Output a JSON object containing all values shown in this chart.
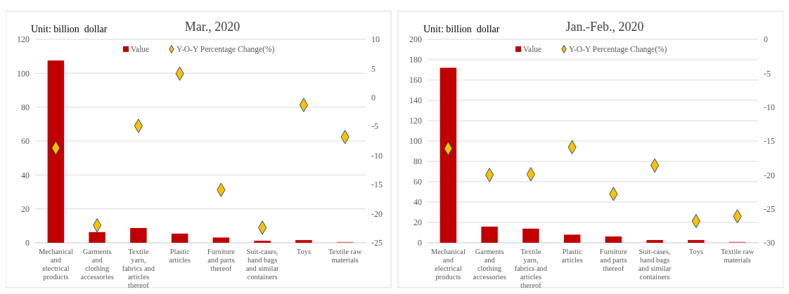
{
  "chart_data": [
    {
      "type": "bar",
      "title": "Mar., 2020",
      "annotations": [
        "Unit: billion  dollar"
      ],
      "categories": [
        "Mechanical and electrical products",
        "Garments and clothing accessories",
        "Textile yarn, fabrics and articles thereof",
        "Plastic articles",
        "Furniture and parts thereof",
        "Suit-cases, hand bags and similar containers",
        "Toys",
        "Textile raw materials"
      ],
      "series": [
        {
          "name": "Value",
          "color": "#c00000",
          "colors": [
            "#c00000",
            "#c00000",
            "#c00000",
            "#c00000",
            "#c00000",
            "#c00000",
            "#c00000",
            "#e06666"
          ],
          "values": [
            107.5,
            6.3,
            8.7,
            5.4,
            3.1,
            1.2,
            1.6,
            0.5
          ]
        },
        {
          "name": "Y-O-Y Percentage Change(%)",
          "type": "scatter",
          "axis": "y2",
          "color": "#ffc000",
          "marker": "diamond",
          "values": [
            -8.7,
            -22.0,
            -4.9,
            4.1,
            -15.9,
            -22.4,
            -1.3,
            -6.8
          ]
        }
      ],
      "ylim": [
        0,
        120
      ],
      "yticks": [
        0,
        20,
        40,
        60,
        80,
        100,
        120
      ],
      "y2lim": [
        -25,
        10
      ],
      "y2ticks": [
        -25,
        -20,
        -15,
        -10,
        -5,
        0,
        5,
        10
      ],
      "grid": "y",
      "legend": "top"
    },
    {
      "type": "bar",
      "title": "Jan.-Feb., 2020",
      "annotations": [
        "Unit: billion  dollar"
      ],
      "categories": [
        "Mechanical and electrical products",
        "Garments and clothing accessories",
        "Textile yarn, fabrics and articles thereof",
        "Plastic articles",
        "Furniture and parts thereof",
        "Suit-cases, hand bags and similar containers",
        "Toys",
        "Textile raw materials"
      ],
      "series": [
        {
          "name": "Value",
          "color": "#c00000",
          "colors": [
            "#c00000",
            "#c00000",
            "#c00000",
            "#c00000",
            "#c00000",
            "#c00000",
            "#c00000",
            "#e06666"
          ],
          "values": [
            172,
            15.9,
            13.9,
            8.0,
            6.2,
            2.7,
            2.7,
            0.9
          ]
        },
        {
          "name": "Y-O-Y Percentage Change(%)",
          "type": "scatter",
          "axis": "y2",
          "color": "#ffc000",
          "marker": "diamond",
          "values": [
            -16.1,
            -20.0,
            -19.9,
            -15.9,
            -22.8,
            -18.6,
            -26.8,
            -26.1
          ]
        }
      ],
      "ylim": [
        0,
        200
      ],
      "yticks": [
        0,
        20,
        40,
        60,
        80,
        100,
        120,
        140,
        160,
        180,
        200
      ],
      "y2lim": [
        -30,
        0
      ],
      "y2ticks": [
        -30,
        -25,
        -20,
        -15,
        -10,
        -5,
        0
      ],
      "grid": "y",
      "legend": "top"
    }
  ]
}
